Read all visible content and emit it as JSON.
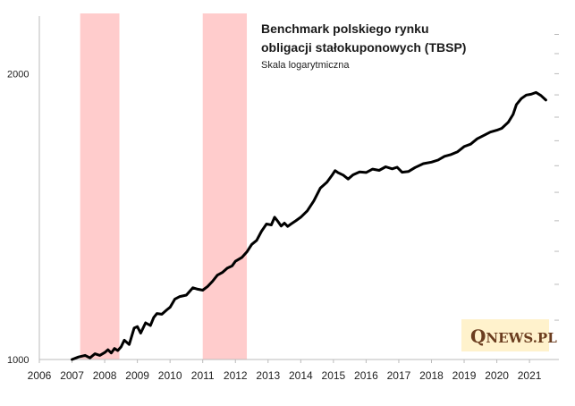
{
  "chart_data": {
    "type": "line",
    "title_line1": "Benchmark polskiego rynku",
    "title_line2": "obligacji stałokuponowych (TBSP)",
    "subtitle": "Skala logarytmiczna",
    "yscale": "log",
    "ylim": [
      1000,
      2300
    ],
    "xlim": [
      2006,
      2021.9
    ],
    "y_ticks": [
      {
        "value": 1000,
        "label": "1000"
      },
      {
        "value": 2000,
        "label": "2000"
      }
    ],
    "x_ticks": [
      "2006",
      "2007",
      "2008",
      "2009",
      "2010",
      "2011",
      "2012",
      "2013",
      "2014",
      "2015",
      "2016",
      "2017",
      "2018",
      "2019",
      "2020",
      "2021"
    ],
    "shaded_periods": [
      {
        "start": 2007.25,
        "end": 2008.45,
        "color": "#ffcccc"
      },
      {
        "start": 2011.0,
        "end": 2012.35,
        "color": "#ffcccc"
      }
    ],
    "series": [
      {
        "name": "TBSP",
        "color": "#000000",
        "points": [
          [
            2007.0,
            1000
          ],
          [
            2007.2,
            1006
          ],
          [
            2007.4,
            1010
          ],
          [
            2007.55,
            1004
          ],
          [
            2007.7,
            1014
          ],
          [
            2007.85,
            1010
          ],
          [
            2008.0,
            1017
          ],
          [
            2008.1,
            1024
          ],
          [
            2008.2,
            1016
          ],
          [
            2008.3,
            1027
          ],
          [
            2008.4,
            1022
          ],
          [
            2008.5,
            1031
          ],
          [
            2008.6,
            1048
          ],
          [
            2008.75,
            1037
          ],
          [
            2008.9,
            1079
          ],
          [
            2009.0,
            1083
          ],
          [
            2009.1,
            1066
          ],
          [
            2009.25,
            1093
          ],
          [
            2009.4,
            1086
          ],
          [
            2009.5,
            1107
          ],
          [
            2009.6,
            1118
          ],
          [
            2009.75,
            1116
          ],
          [
            2009.9,
            1128
          ],
          [
            2010.0,
            1135
          ],
          [
            2010.15,
            1158
          ],
          [
            2010.3,
            1165
          ],
          [
            2010.5,
            1169
          ],
          [
            2010.7,
            1190
          ],
          [
            2010.85,
            1186
          ],
          [
            2011.0,
            1183
          ],
          [
            2011.15,
            1194
          ],
          [
            2011.3,
            1209
          ],
          [
            2011.45,
            1227
          ],
          [
            2011.6,
            1235
          ],
          [
            2011.75,
            1248
          ],
          [
            2011.9,
            1255
          ],
          [
            2012.0,
            1269
          ],
          [
            2012.2,
            1281
          ],
          [
            2012.35,
            1298
          ],
          [
            2012.5,
            1322
          ],
          [
            2012.65,
            1335
          ],
          [
            2012.8,
            1365
          ],
          [
            2012.95,
            1389
          ],
          [
            2013.1,
            1386
          ],
          [
            2013.2,
            1412
          ],
          [
            2013.3,
            1398
          ],
          [
            2013.4,
            1382
          ],
          [
            2013.5,
            1392
          ],
          [
            2013.6,
            1381
          ],
          [
            2013.7,
            1389
          ],
          [
            2013.85,
            1400
          ],
          [
            2014.0,
            1412
          ],
          [
            2014.2,
            1434
          ],
          [
            2014.4,
            1469
          ],
          [
            2014.6,
            1516
          ],
          [
            2014.8,
            1537
          ],
          [
            2014.95,
            1562
          ],
          [
            2015.05,
            1581
          ],
          [
            2015.15,
            1573
          ],
          [
            2015.3,
            1564
          ],
          [
            2015.45,
            1549
          ],
          [
            2015.6,
            1565
          ],
          [
            2015.8,
            1576
          ],
          [
            2016.0,
            1574
          ],
          [
            2016.2,
            1587
          ],
          [
            2016.4,
            1582
          ],
          [
            2016.6,
            1596
          ],
          [
            2016.8,
            1588
          ],
          [
            2016.95,
            1594
          ],
          [
            2017.1,
            1575
          ],
          [
            2017.3,
            1578
          ],
          [
            2017.5,
            1593
          ],
          [
            2017.75,
            1608
          ],
          [
            2018.0,
            1614
          ],
          [
            2018.2,
            1622
          ],
          [
            2018.4,
            1637
          ],
          [
            2018.6,
            1644
          ],
          [
            2018.8,
            1655
          ],
          [
            2019.0,
            1676
          ],
          [
            2019.2,
            1686
          ],
          [
            2019.4,
            1708
          ],
          [
            2019.6,
            1722
          ],
          [
            2019.8,
            1736
          ],
          [
            2020.0,
            1744
          ],
          [
            2020.15,
            1752
          ],
          [
            2020.35,
            1778
          ],
          [
            2020.5,
            1812
          ],
          [
            2020.6,
            1856
          ],
          [
            2020.75,
            1883
          ],
          [
            2020.9,
            1899
          ],
          [
            2021.05,
            1903
          ],
          [
            2021.2,
            1911
          ],
          [
            2021.35,
            1897
          ],
          [
            2021.5,
            1876
          ]
        ]
      }
    ]
  },
  "brand": {
    "q": "Q",
    "rest": "NEWS.PL"
  }
}
